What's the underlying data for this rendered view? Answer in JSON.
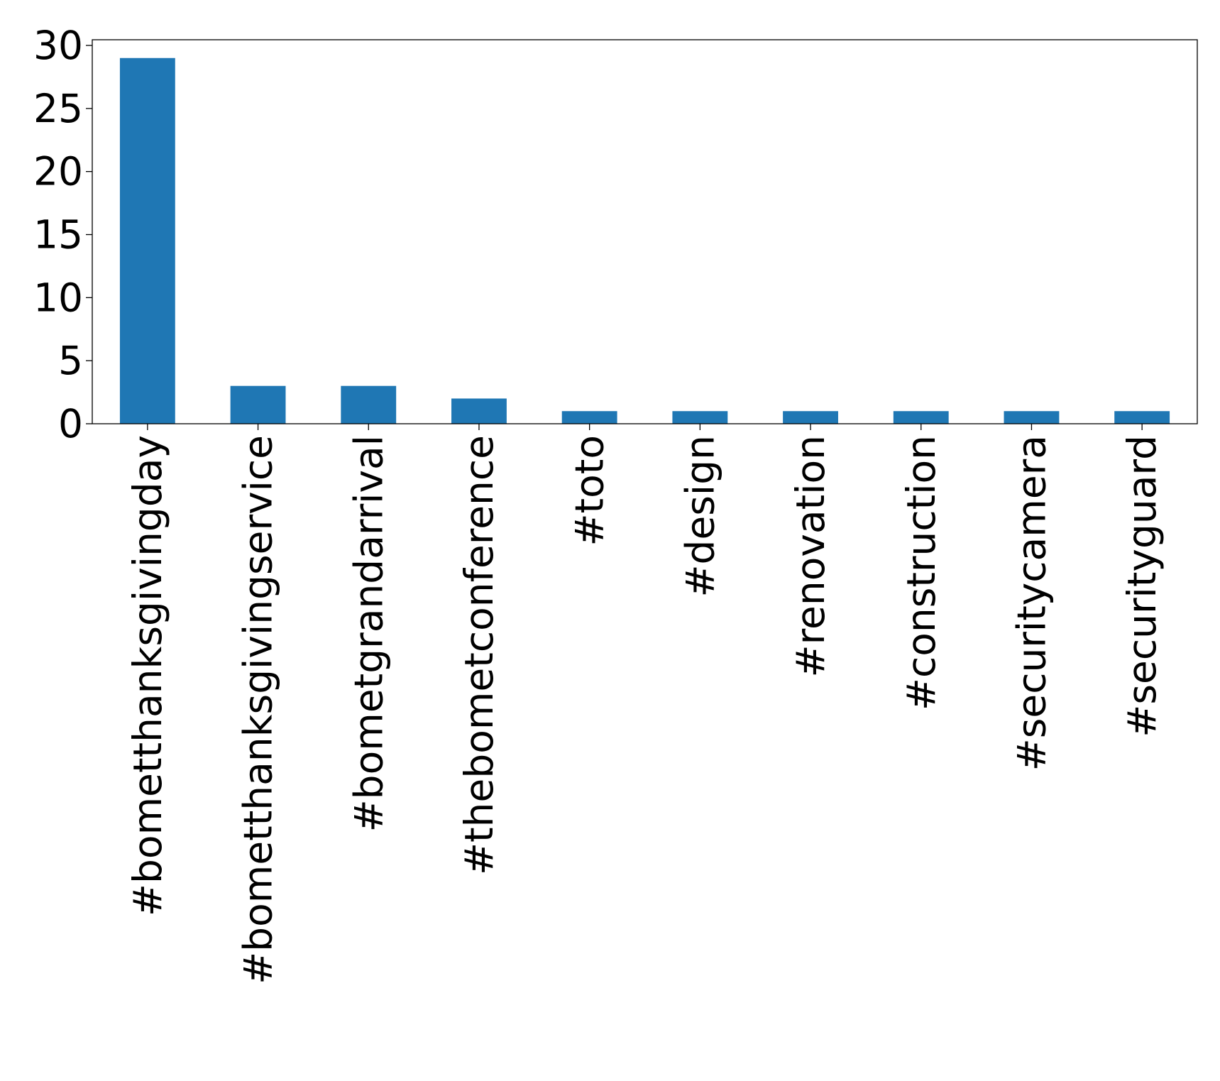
{
  "chart_data": {
    "type": "bar",
    "title": "",
    "xlabel": "",
    "ylabel": "",
    "categories": [
      "#bometthanksgivingday",
      "#bometthanksgivingservice",
      "#bometgrandarrival",
      "#thebometconference",
      "#toto",
      "#design",
      "#renovation",
      "#construction",
      "#securitycamera",
      "#securityguard"
    ],
    "values": [
      29,
      3,
      3,
      2,
      1,
      1,
      1,
      1,
      1,
      1
    ],
    "ylim": [
      0,
      30.45
    ],
    "yticks": [
      0,
      5,
      10,
      15,
      20,
      25,
      30
    ],
    "grid": false,
    "legend": "none",
    "bar_color": "#1f77b4",
    "x_tick_rotation": 90
  }
}
